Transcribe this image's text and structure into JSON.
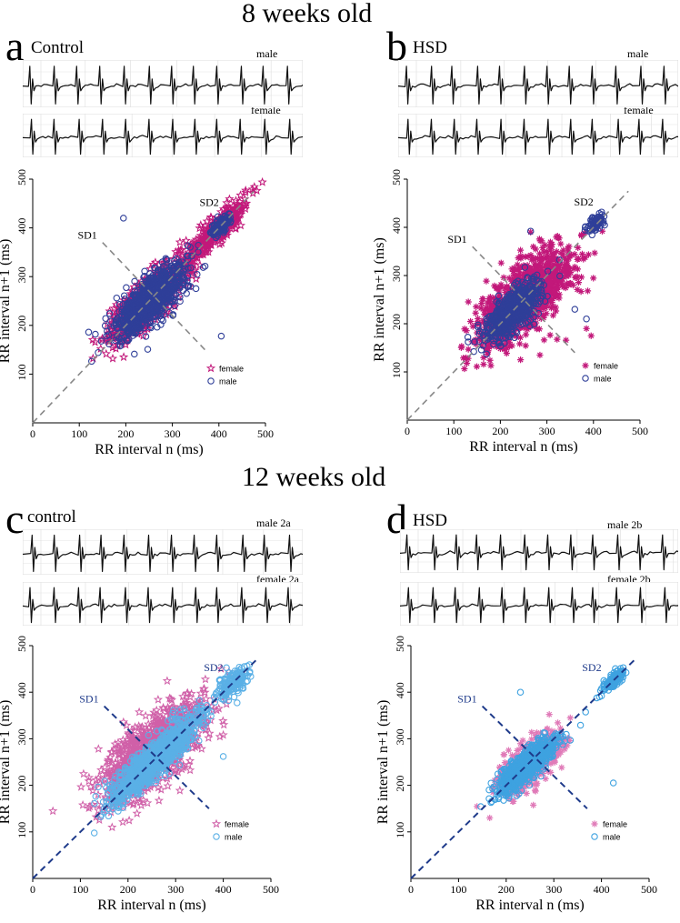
{
  "figure": {
    "titles": [
      "8 weeks old",
      "12 weeks old"
    ]
  },
  "chart_data": [
    {
      "panel": "a",
      "condition": "Control",
      "type": "scatter",
      "ecg_labels": [
        "male",
        "female"
      ],
      "xlabel": "RR interval n (ms)",
      "ylabel": "RR interval n+1 (ms)",
      "xlim": [
        0,
        500
      ],
      "ylim": [
        0,
        500
      ],
      "xticks": [
        0,
        100,
        200,
        300,
        400,
        500
      ],
      "yticks": [
        100,
        200,
        300,
        400,
        500
      ],
      "grid": false,
      "legend_position": "bottom-right",
      "annotations": [
        "SD1",
        "SD2"
      ],
      "identity_line": true,
      "series": [
        {
          "name": "female",
          "marker": "star",
          "color": "#c2187a",
          "clusters": [
            {
              "cx": 245,
              "cy": 248,
              "sx": 42,
              "sy": 42,
              "corr": 0.82,
              "n": 700
            },
            {
              "cx": 380,
              "cy": 380,
              "sx": 40,
              "sy": 40,
              "corr": 0.92,
              "n": 260
            },
            {
              "cx": 420,
              "cy": 418,
              "sx": 15,
              "sy": 15,
              "corr": 0.6,
              "n": 120
            }
          ]
        },
        {
          "name": "male",
          "marker": "circle",
          "color": "#2f3f99",
          "clusters": [
            {
              "cx": 250,
              "cy": 250,
              "sx": 38,
              "sy": 38,
              "corr": 0.78,
              "n": 950
            },
            {
              "cx": 403,
              "cy": 403,
              "sx": 10,
              "sy": 10,
              "corr": 0.6,
              "n": 120
            }
          ],
          "outliers": [
            [
              195,
              420
            ],
            [
              405,
              178
            ]
          ]
        }
      ]
    },
    {
      "panel": "b",
      "condition": "HSD",
      "type": "scatter",
      "ecg_labels": [
        "male",
        "female"
      ],
      "xlabel": "RR interval n (ms)",
      "ylabel": "RR interval n+1 (ms)",
      "xlim": [
        0,
        500
      ],
      "ylim": [
        0,
        500
      ],
      "xticks": [
        0,
        100,
        200,
        300,
        400,
        500
      ],
      "yticks": [
        100,
        200,
        300,
        400,
        500
      ],
      "grid": false,
      "legend_position": "bottom-right",
      "annotations": [
        "SD1",
        "SD2"
      ],
      "identity_line": true,
      "series": [
        {
          "name": "female",
          "marker": "asterisk",
          "color": "#c2187a",
          "clusters": [
            {
              "cx": 255,
              "cy": 255,
              "sx": 52,
              "sy": 52,
              "corr": 0.72,
              "n": 1000
            }
          ],
          "outliers": [
            [
              385,
              190
            ],
            [
              395,
              175
            ],
            [
              265,
              390
            ],
            [
              285,
              135
            ]
          ]
        },
        {
          "name": "male",
          "marker": "circle",
          "color": "#2f3f99",
          "clusters": [
            {
              "cx": 225,
              "cy": 225,
              "sx": 30,
              "sy": 30,
              "corr": 0.7,
              "n": 600
            },
            {
              "cx": 405,
              "cy": 408,
              "sx": 9,
              "sy": 9,
              "corr": 0.6,
              "n": 90
            }
          ],
          "outliers": [
            [
              265,
              392
            ],
            [
              360,
              230
            ],
            [
              385,
              210
            ],
            [
              130,
              172
            ]
          ]
        }
      ]
    },
    {
      "panel": "c",
      "condition": "control",
      "type": "scatter",
      "ecg_labels": [
        "male 2a",
        "female 2a"
      ],
      "xlabel": "RR interval n (ms)",
      "ylabel": "RR interval n+1 (ms)",
      "xlim": [
        0,
        500
      ],
      "ylim": [
        0,
        500
      ],
      "xticks": [
        0,
        100,
        200,
        300,
        400,
        500
      ],
      "yticks": [
        100,
        200,
        300,
        400,
        500
      ],
      "grid": false,
      "legend_position": "bottom-right",
      "annotations": [
        "SD1",
        "SD2"
      ],
      "identity_line": true,
      "series": [
        {
          "name": "female",
          "marker": "star",
          "color": "#d060a8",
          "clusters": [
            {
              "cx": 250,
              "cy": 270,
              "sx": 55,
              "sy": 55,
              "corr": 0.72,
              "n": 1000
            }
          ]
        },
        {
          "name": "male",
          "marker": "circle",
          "color": "#5ab0e6",
          "clusters": [
            {
              "cx": 255,
              "cy": 255,
              "sx": 45,
              "sy": 45,
              "corr": 0.9,
              "n": 1200
            },
            {
              "cx": 420,
              "cy": 420,
              "sx": 15,
              "sy": 15,
              "corr": 0.5,
              "n": 160
            }
          ],
          "outliers": [
            [
              400,
              262
            ],
            [
              310,
              265
            ]
          ]
        }
      ]
    },
    {
      "panel": "d",
      "condition": "HSD",
      "type": "scatter",
      "ecg_labels": [
        "male 2b",
        "female 2b"
      ],
      "xlabel": "RR interval n (ms)",
      "ylabel": "RR interval n+1 (ms)",
      "xlim": [
        0,
        500
      ],
      "ylim": [
        0,
        500
      ],
      "xticks": [
        0,
        100,
        200,
        300,
        400,
        500
      ],
      "yticks": [
        100,
        200,
        300,
        400,
        500
      ],
      "grid": false,
      "legend_position": "bottom-right",
      "annotations": [
        "SD1",
        "SD2"
      ],
      "identity_line": true,
      "series": [
        {
          "name": "female",
          "marker": "asterisk",
          "color": "#e07ab8",
          "clusters": [
            {
              "cx": 245,
              "cy": 245,
              "sx": 35,
              "sy": 35,
              "corr": 0.7,
              "n": 450
            }
          ]
        },
        {
          "name": "male",
          "marker": "circle",
          "color": "#3ea2e0",
          "clusters": [
            {
              "cx": 245,
              "cy": 245,
              "sx": 30,
              "sy": 30,
              "corr": 0.85,
              "n": 900
            },
            {
              "cx": 425,
              "cy": 425,
              "sx": 12,
              "sy": 12,
              "corr": 0.8,
              "n": 140
            }
          ],
          "outliers": [
            [
              230,
              400
            ],
            [
              425,
              205
            ]
          ]
        }
      ]
    }
  ]
}
